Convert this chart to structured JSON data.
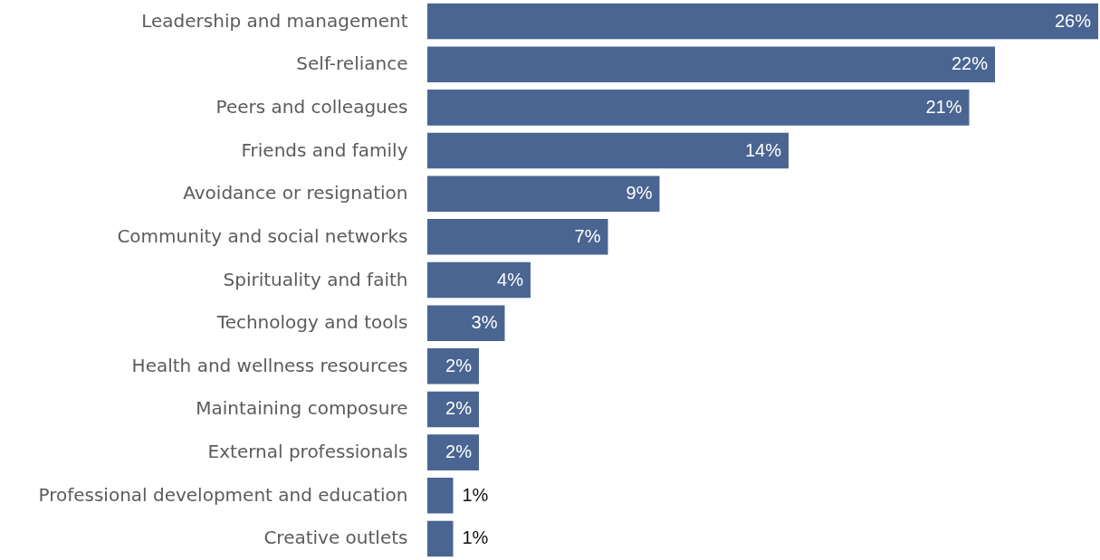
{
  "chart_data": {
    "type": "bar",
    "orientation": "horizontal",
    "categories": [
      "Leadership and management",
      "Self-reliance",
      "Peers and colleagues",
      "Friends and family",
      "Avoidance or resignation",
      "Community and social networks",
      "Spirituality and faith",
      "Technology and tools",
      "Health and wellness resources",
      "Maintaining composure",
      "External professionals",
      "Professional development and education",
      "Creative outlets"
    ],
    "values": [
      26,
      22,
      21,
      14,
      9,
      7,
      4,
      3,
      2,
      2,
      2,
      1,
      1
    ],
    "value_labels": [
      "26%",
      "22%",
      "21%",
      "14%",
      "9%",
      "7%",
      "4%",
      "3%",
      "2%",
      "2%",
      "2%",
      "1%",
      "1%"
    ],
    "color": "#4a6591"
  }
}
